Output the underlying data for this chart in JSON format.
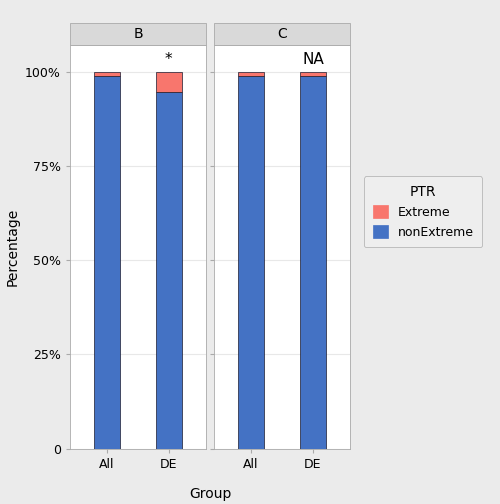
{
  "facets": [
    "B",
    "C"
  ],
  "groups": [
    "All",
    "DE"
  ],
  "extreme_values": {
    "B": {
      "All": 1.0,
      "DE": 5.5
    },
    "C": {
      "All": 1.0,
      "DE": 1.2
    }
  },
  "nonextreme_values": {
    "B": {
      "All": 99.0,
      "DE": 94.5
    },
    "C": {
      "All": 99.0,
      "DE": 98.8
    }
  },
  "annotations": {
    "B": {
      "All": "",
      "DE": "*"
    },
    "C": {
      "All": "",
      "DE": "NA"
    }
  },
  "colors": {
    "Extreme": "#F8766D",
    "nonExtreme": "#4472C4"
  },
  "bar_edge_color": "#1A1A2E",
  "bar_width": 0.42,
  "ylabel": "Percentage",
  "xlabel": "Group",
  "legend_title": "PTR",
  "legend_labels": [
    "Extreme",
    "nonExtreme"
  ],
  "yticks": [
    0,
    25,
    50,
    75,
    100
  ],
  "ytick_labels": [
    "0",
    "25%",
    "50%",
    "75%",
    "100%"
  ],
  "background_color": "#EBEBEB",
  "panel_bg": "#FFFFFF",
  "facet_bg": "#D9D9D9",
  "grid_color": "#E8E8E8",
  "facet_label_fontsize": 10,
  "axis_label_fontsize": 10,
  "tick_label_fontsize": 9,
  "legend_fontsize": 9,
  "legend_title_fontsize": 10,
  "annotation_fontsize": 11
}
